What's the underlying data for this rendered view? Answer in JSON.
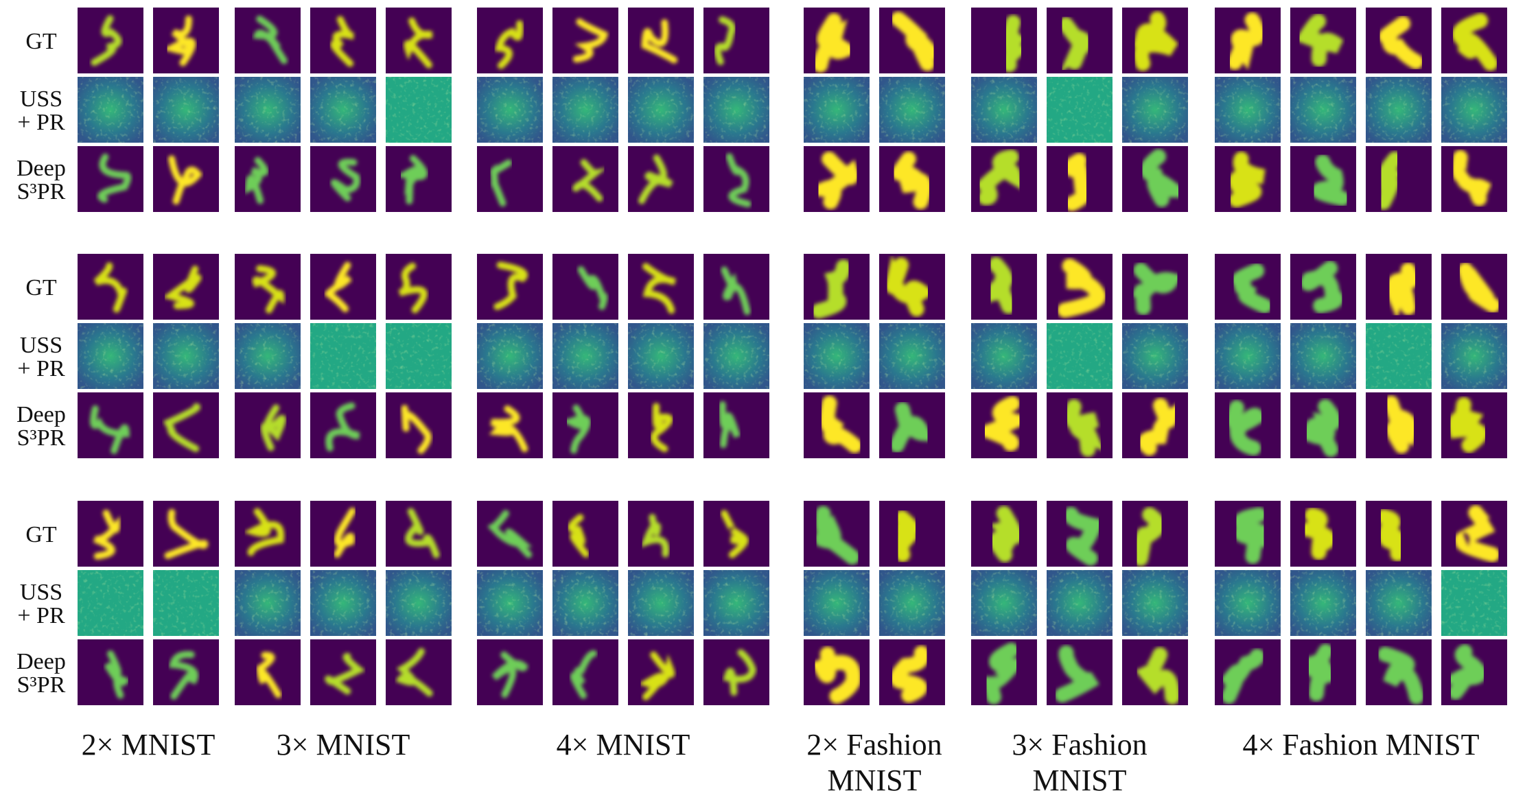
{
  "row_labels": [
    [
      "GT"
    ],
    [
      "USS",
      "+ PR"
    ],
    [
      "Deep",
      "S³PR"
    ]
  ],
  "groups": [
    {
      "label": [
        "2× MNIST"
      ]
    },
    {
      "label": [
        "3× MNIST"
      ]
    },
    {
      "label": [
        "4× MNIST"
      ]
    },
    {
      "label": [
        "2× Fashion",
        "MNIST"
      ]
    },
    {
      "label": [
        "3× Fashion",
        "MNIST"
      ]
    },
    {
      "label": [
        "4× Fashion MNIST"
      ]
    }
  ]
}
